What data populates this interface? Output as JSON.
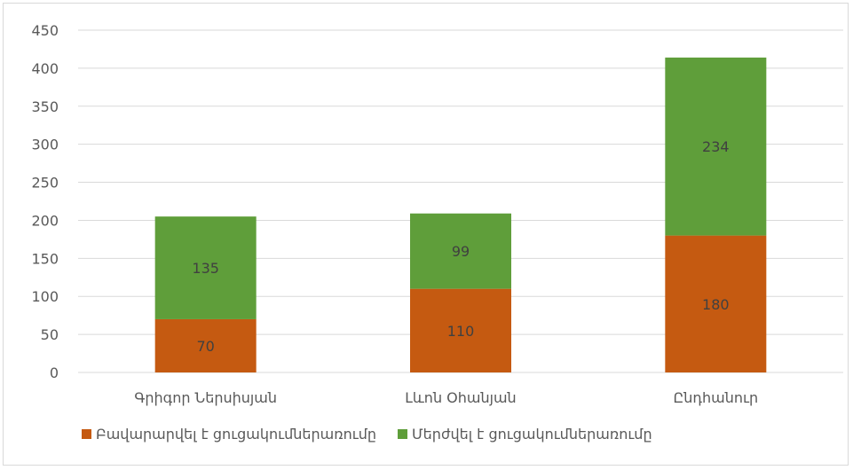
{
  "chart_data": {
    "type": "bar",
    "stacked": true,
    "categories": [
      "Գրիգոր Ներսիսյան",
      "Լևոն Օհանյան",
      "Ընդհանուր"
    ],
    "series": [
      {
        "name": "Բավարարվել է ցուցակումներառումը",
        "color": "#c55a11",
        "values": [
          70,
          110,
          180
        ]
      },
      {
        "name": "Մերժվել է ցուցակումներառումը",
        "color": "#5f9e3a",
        "values": [
          135,
          99,
          234
        ]
      }
    ],
    "ylim": [
      0,
      450
    ],
    "yticks": [
      0,
      50,
      100,
      150,
      200,
      250,
      300,
      350,
      400,
      450
    ],
    "grid": true,
    "legend_position": "bottom-left",
    "title": "",
    "xlabel": "",
    "ylabel": ""
  }
}
